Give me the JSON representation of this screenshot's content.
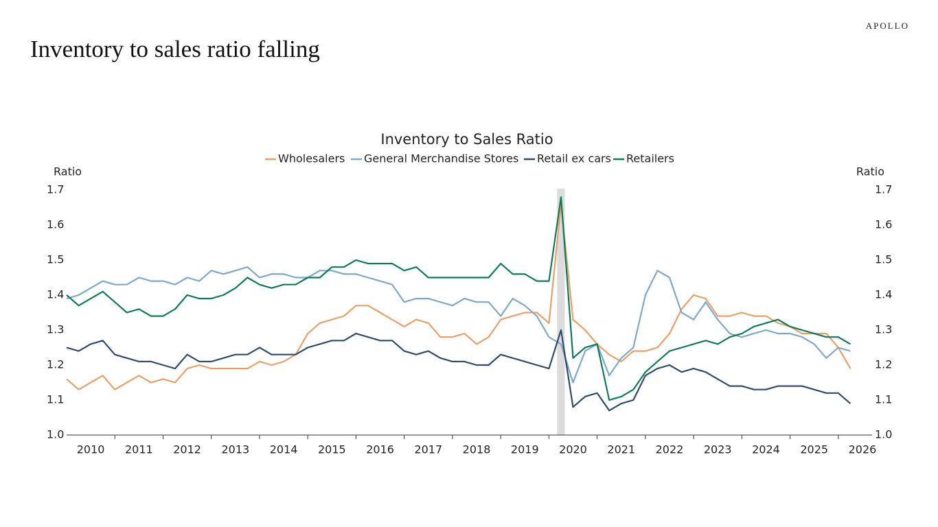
{
  "brand": "APOLLO",
  "page_title": "Inventory to sales ratio falling",
  "chart_data": {
    "type": "line",
    "title": "Inventory to Sales Ratio",
    "y_label": "Ratio",
    "y2_label": "Ratio",
    "x": [
      2010,
      2010.25,
      2010.5,
      2010.75,
      2011,
      2011.25,
      2011.5,
      2011.75,
      2012,
      2012.25,
      2012.5,
      2012.75,
      2013,
      2013.25,
      2013.5,
      2013.75,
      2014,
      2014.25,
      2014.5,
      2014.75,
      2015,
      2015.25,
      2015.5,
      2015.75,
      2016,
      2016.25,
      2016.5,
      2016.75,
      2017,
      2017.25,
      2017.5,
      2017.75,
      2018,
      2018.25,
      2018.5,
      2018.75,
      2019,
      2019.25,
      2019.5,
      2019.75,
      2020,
      2020.25,
      2020.5,
      2020.75,
      2021,
      2021.25,
      2021.5,
      2021.75,
      2022,
      2022.25,
      2022.5,
      2022.75,
      2023,
      2023.25,
      2023.5,
      2023.75,
      2024,
      2024.25,
      2024.5,
      2024.75,
      2025,
      2025.25,
      2025.5,
      2025.75,
      2026,
      2026.25
    ],
    "xlim": [
      2010,
      2026.7
    ],
    "xticks": [
      {
        "value": 2010.5,
        "label": "2010"
      },
      {
        "value": 2011.5,
        "label": "2011"
      },
      {
        "value": 2012.5,
        "label": "2012"
      },
      {
        "value": 2013.5,
        "label": "2013"
      },
      {
        "value": 2014.5,
        "label": "2014"
      },
      {
        "value": 2015.5,
        "label": "2015"
      },
      {
        "value": 2016.5,
        "label": "2016"
      },
      {
        "value": 2017.5,
        "label": "2017"
      },
      {
        "value": 2018.5,
        "label": "2018"
      },
      {
        "value": 2019.5,
        "label": "2019"
      },
      {
        "value": 2020.5,
        "label": "2020"
      },
      {
        "value": 2021.5,
        "label": "2021"
      },
      {
        "value": 2022.5,
        "label": "2022"
      },
      {
        "value": 2023.5,
        "label": "2023"
      },
      {
        "value": 2024.5,
        "label": "2024"
      },
      {
        "value": 2025.5,
        "label": "2025"
      },
      {
        "value": 2026.5,
        "label": "2026"
      }
    ],
    "ylim": [
      1.0,
      1.7
    ],
    "yticks": [
      {
        "value": 1,
        "label": "1.0"
      },
      1.1,
      1.2,
      1.3,
      1.4,
      1.5,
      1.6,
      1.7
    ],
    "y2lim": [
      1.0,
      1.7
    ],
    "y2ticks": [
      {
        "value": 1,
        "label": "1.0"
      },
      1.1,
      1.2,
      1.3,
      1.4,
      1.5,
      1.6,
      1.7
    ],
    "recession": [
      2020.17,
      2020.33
    ],
    "recession_color": "#dcdcdc",
    "grid": false,
    "series": [
      {
        "name": "Wholesalers",
        "color": "#e8a06a",
        "values": [
          1.16,
          1.13,
          1.15,
          1.17,
          1.13,
          1.15,
          1.17,
          1.15,
          1.16,
          1.15,
          1.19,
          1.2,
          1.19,
          1.19,
          1.19,
          1.19,
          1.21,
          1.2,
          1.21,
          1.23,
          1.29,
          1.32,
          1.33,
          1.34,
          1.37,
          1.37,
          1.35,
          1.33,
          1.31,
          1.33,
          1.32,
          1.28,
          1.28,
          1.29,
          1.26,
          1.28,
          1.33,
          1.34,
          1.35,
          1.35,
          1.32,
          1.66,
          1.33,
          1.3,
          1.26,
          1.23,
          1.21,
          1.24,
          1.24,
          1.25,
          1.29,
          1.36,
          1.4,
          1.39,
          1.34,
          1.34,
          1.35,
          1.34,
          1.34,
          1.32,
          1.31,
          1.29,
          1.29,
          1.29,
          1.25,
          1.19
        ]
      },
      {
        "name": "General Merchandise Stores",
        "color": "#7fa7c9",
        "values": [
          1.39,
          1.4,
          1.42,
          1.44,
          1.43,
          1.43,
          1.45,
          1.44,
          1.44,
          1.43,
          1.45,
          1.44,
          1.47,
          1.46,
          1.47,
          1.48,
          1.45,
          1.46,
          1.46,
          1.45,
          1.45,
          1.47,
          1.47,
          1.46,
          1.46,
          1.45,
          1.44,
          1.43,
          1.38,
          1.39,
          1.39,
          1.38,
          1.37,
          1.39,
          1.38,
          1.38,
          1.34,
          1.39,
          1.37,
          1.34,
          1.28,
          1.26,
          1.15,
          1.24,
          1.26,
          1.17,
          1.22,
          1.25,
          1.4,
          1.47,
          1.45,
          1.35,
          1.33,
          1.38,
          1.33,
          1.29,
          1.28,
          1.29,
          1.3,
          1.29,
          1.29,
          1.28,
          1.26,
          1.22,
          1.25,
          1.24
        ]
      },
      {
        "name": "Retail ex cars",
        "color": "#2e4a6b",
        "values": [
          1.25,
          1.24,
          1.26,
          1.27,
          1.23,
          1.22,
          1.21,
          1.21,
          1.2,
          1.19,
          1.23,
          1.21,
          1.21,
          1.22,
          1.23,
          1.23,
          1.25,
          1.23,
          1.23,
          1.23,
          1.25,
          1.26,
          1.27,
          1.27,
          1.29,
          1.28,
          1.27,
          1.27,
          1.24,
          1.23,
          1.24,
          1.22,
          1.21,
          1.21,
          1.2,
          1.2,
          1.23,
          1.22,
          1.21,
          1.2,
          1.19,
          1.3,
          1.08,
          1.11,
          1.12,
          1.07,
          1.09,
          1.1,
          1.17,
          1.19,
          1.2,
          1.18,
          1.19,
          1.18,
          1.16,
          1.14,
          1.14,
          1.13,
          1.13,
          1.14,
          1.14,
          1.14,
          1.13,
          1.12,
          1.12,
          1.09
        ]
      },
      {
        "name": "Retailers",
        "color": "#0f7a5a",
        "values": [
          1.4,
          1.37,
          1.39,
          1.41,
          1.38,
          1.35,
          1.36,
          1.34,
          1.34,
          1.36,
          1.4,
          1.39,
          1.39,
          1.4,
          1.42,
          1.45,
          1.43,
          1.42,
          1.43,
          1.43,
          1.45,
          1.45,
          1.48,
          1.48,
          1.5,
          1.49,
          1.49,
          1.49,
          1.47,
          1.48,
          1.45,
          1.45,
          1.45,
          1.45,
          1.45,
          1.45,
          1.49,
          1.46,
          1.46,
          1.44,
          1.44,
          1.68,
          1.22,
          1.25,
          1.26,
          1.1,
          1.11,
          1.13,
          1.18,
          1.21,
          1.24,
          1.25,
          1.26,
          1.27,
          1.26,
          1.28,
          1.29,
          1.31,
          1.32,
          1.33,
          1.31,
          1.3,
          1.29,
          1.28,
          1.28,
          1.26
        ]
      }
    ]
  }
}
